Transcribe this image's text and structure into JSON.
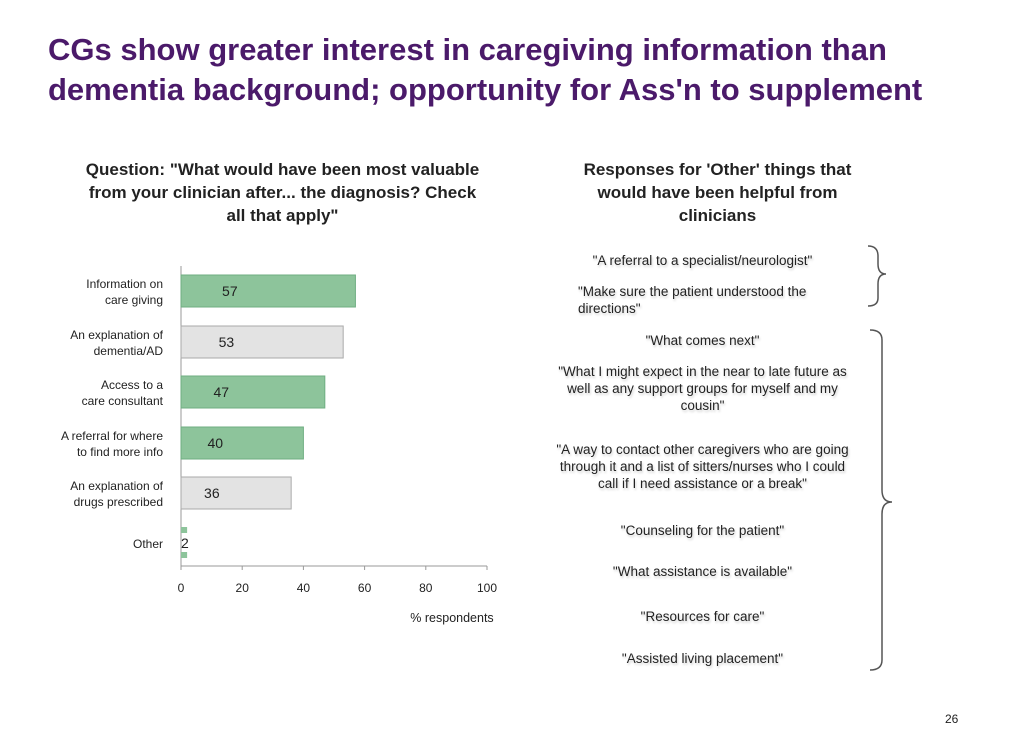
{
  "slide": {
    "title_line1": "CGs show greater interest in caregiving information than",
    "title_line2": "dementia background; opportunity for Ass'n to supplement",
    "page_number": "26"
  },
  "question": {
    "line1": "Question: \"What would have been most valuable",
    "line2": "from your clinician after... the diagnosis? Check",
    "line3": "all that apply\""
  },
  "other_panel": {
    "line1": "Responses for 'Other' things that",
    "line2": "would have been helpful from",
    "line3": "clinicians",
    "responses": [
      {
        "text": "\"A referral to a specialist/neurologist\"",
        "fill": "gray"
      },
      {
        "text": "\"Make sure the patient understood the directions\"",
        "fill": "gray"
      },
      {
        "text": "\"What comes next\"",
        "fill": "green"
      },
      {
        "text": "\"What I might expect in the near to late future as well as any support groups for myself and my cousin\"",
        "fill": "green"
      },
      {
        "text": "\"A way to contact other caregivers who are going through it and a list of sitters/nurses who I could call if I need assistance or a break\"",
        "fill": "green"
      },
      {
        "text": "\"Counseling for the patient\"",
        "fill": "green"
      },
      {
        "text": "\"What assistance is available\"",
        "fill": "green"
      },
      {
        "text": "\"Resources for care\"",
        "fill": "green"
      },
      {
        "text": "\"Assisted living placement\"",
        "fill": "green"
      }
    ]
  },
  "colors": {
    "title": "#4b1a6a",
    "green_bar": "#8dc49b",
    "green_border": "#6fae82",
    "gray_bar": "#e3e3e3",
    "gray_border": "#aaaaaa"
  },
  "chart_data": {
    "type": "bar",
    "orientation": "horizontal",
    "categories": [
      [
        "Information on",
        "care giving"
      ],
      [
        "An explanation of",
        "dementia/AD"
      ],
      [
        "Access to a",
        "care consultant"
      ],
      [
        "A referral for where",
        "to find more info"
      ],
      [
        "An explanation of",
        "drugs prescribed"
      ],
      [
        "Other"
      ]
    ],
    "values": [
      57,
      53,
      47,
      40,
      36,
      2
    ],
    "value_labels": [
      "57",
      "53",
      "47",
      "40",
      "36",
      "2"
    ],
    "fills": [
      "green",
      "gray",
      "green",
      "green",
      "gray",
      "green"
    ],
    "xlabel": "% respondents",
    "xlim": [
      0,
      100
    ],
    "xticks": [
      "0",
      "20",
      "40",
      "60",
      "80",
      "100"
    ],
    "grid": false,
    "legend": "none"
  }
}
